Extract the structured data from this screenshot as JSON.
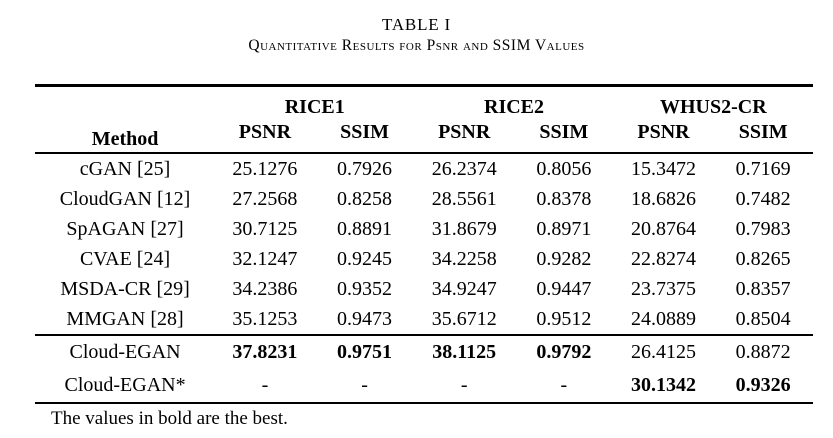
{
  "page": {
    "title": "TABLE I",
    "subtitle": "Quantitative Results for Psnr and SSIM Values",
    "footnote": "The values in bold are the best."
  },
  "header": {
    "method": "Method",
    "groups": [
      {
        "label": "RICE1"
      },
      {
        "label": "RICE2"
      },
      {
        "label": "WHUS2-CR"
      }
    ],
    "metrics": [
      "PSNR",
      "SSIM",
      "PSNR",
      "SSIM",
      "PSNR",
      "SSIM"
    ]
  },
  "rows": [
    {
      "method": "cGAN [25]",
      "cells": [
        "25.1276",
        "0.7926",
        "26.2374",
        "0.8056",
        "15.3472",
        "0.7169"
      ]
    },
    {
      "method": "CloudGAN [12]",
      "cells": [
        "27.2568",
        "0.8258",
        "28.5561",
        "0.8378",
        "18.6826",
        "0.7482"
      ]
    },
    {
      "method": "SpAGAN [27]",
      "cells": [
        "30.7125",
        "0.8891",
        "31.8679",
        "0.8971",
        "20.8764",
        "0.7983"
      ]
    },
    {
      "method": "CVAE [24]",
      "cells": [
        "32.1247",
        "0.9245",
        "34.2258",
        "0.9282",
        "22.8274",
        "0.8265"
      ]
    },
    {
      "method": "MSDA-CR [29]",
      "cells": [
        "34.2386",
        "0.9352",
        "34.9247",
        "0.9447",
        "23.7375",
        "0.8357"
      ]
    },
    {
      "method": "MMGAN [28]",
      "cells": [
        "35.1253",
        "0.9473",
        "35.6712",
        "0.9512",
        "24.0889",
        "0.8504"
      ]
    }
  ],
  "final_rows": [
    {
      "method": "Cloud-EGAN",
      "cells": [
        "37.8231",
        "0.9751",
        "38.1125",
        "0.9792",
        "26.4125",
        "0.8872"
      ]
    },
    {
      "method": "Cloud-EGAN*",
      "cells": [
        "-",
        "-",
        "-",
        "-",
        "30.1342",
        "0.9326"
      ]
    }
  ]
}
